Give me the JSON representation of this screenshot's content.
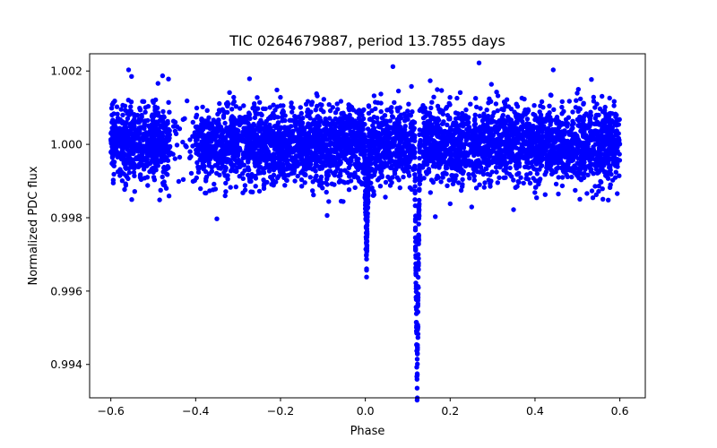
{
  "chart_data": {
    "type": "scatter",
    "title": "TIC 0264679887, period 13.7855 days",
    "xlabel": "Phase",
    "ylabel": "Normalized PDC flux",
    "xlim": [
      -0.65,
      0.66
    ],
    "ylim": [
      0.99309,
      1.00247
    ],
    "xticks": [
      -0.6,
      -0.4,
      -0.2,
      0.0,
      0.2,
      0.4,
      0.6
    ],
    "xtick_labels": [
      "−0.6",
      "−0.4",
      "−0.2",
      "0.0",
      "0.2",
      "0.4",
      "0.6"
    ],
    "yticks": [
      0.994,
      0.996,
      0.998,
      1.0,
      1.002
    ],
    "ytick_labels": [
      "0.994",
      "0.996",
      "0.998",
      "1.000",
      "1.002"
    ],
    "grid": false,
    "marker_color": "#0000ff",
    "series": [
      {
        "name": "PDC flux",
        "baseline": 1.0,
        "scatter_sigma": 0.00052,
        "phase_range": [
          -0.6,
          0.6
        ],
        "gaps": [
          [
            -0.46,
            -0.4
          ],
          [
            0.13,
            0.135
          ]
        ],
        "eclipses": [
          {
            "center": 0.122,
            "depth": 0.0065,
            "half_width": 0.006
          },
          {
            "center": 0.003,
            "depth": 0.0028,
            "half_width": 0.005
          }
        ],
        "outliers": [
          {
            "x": -0.558,
            "y": 1.00203
          },
          {
            "x": 0.065,
            "y": 1.00212
          },
          {
            "x": 0.268,
            "y": 1.00222
          },
          {
            "x": 0.443,
            "y": 1.00203
          },
          {
            "x": -0.464,
            "y": 1.00178
          },
          {
            "x": 0.533,
            "y": 1.00177
          },
          {
            "x": -0.35,
            "y": 0.99797
          },
          {
            "x": -0.09,
            "y": 0.99806
          },
          {
            "x": 0.165,
            "y": 0.99803
          },
          {
            "x": 0.2,
            "y": 0.99838
          }
        ]
      }
    ]
  }
}
